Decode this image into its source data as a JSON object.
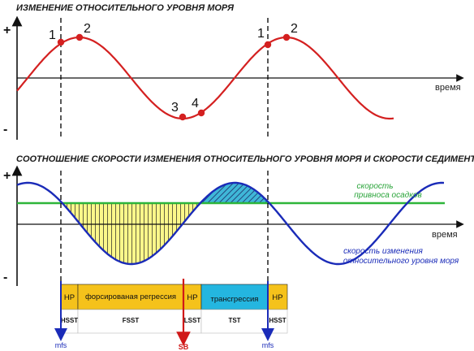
{
  "top_chart": {
    "title": "ИЗМЕНЕНИЕ ОТНОСИТЕЛЬНОГО УРОВНЯ МОРЯ",
    "plus": "+",
    "minus": "-",
    "x_label": "время",
    "points": [
      "1",
      "2",
      "3",
      "4",
      "1",
      "2"
    ],
    "curve_color": "#d42020"
  },
  "bottom_chart": {
    "title": "СООТНОШЕНИЕ СКОРОСТИ ИЗМЕНЕНИЯ ОТНОСИТЕЛЬНОГО УРОВНЯ МОРЯ И СКОРОСТИ СЕДИМЕНТАЦИИ",
    "plus": "+",
    "minus": "-",
    "x_label": "время",
    "sediment_label_line1": "скорость",
    "sediment_label_line2": "привноса осадков",
    "sealevel_label_line1": "скорость изменения",
    "sealevel_label_line2": "относительного уровня моря",
    "sediment_color": "#2db53a",
    "sealevel_color": "#1a2bb8",
    "fill_below_color": "#fbf78a",
    "fill_above_color": "#3fb7d8"
  },
  "systems_bar": {
    "stages": [
      {
        "label": "НР",
        "color": "#f5c21b"
      },
      {
        "label": "форсированая регрессия",
        "color": "#f5c21b"
      },
      {
        "label": "НР",
        "color": "#f5c21b"
      },
      {
        "label": "трансгрессия",
        "color": "#24b6e0"
      },
      {
        "label": "НР",
        "color": "#f5c21b"
      }
    ],
    "tracts": [
      "HSST",
      "FSST",
      "LSST",
      "TST",
      "HSST"
    ],
    "markers": [
      "mfs",
      "SB",
      "mfs"
    ]
  }
}
